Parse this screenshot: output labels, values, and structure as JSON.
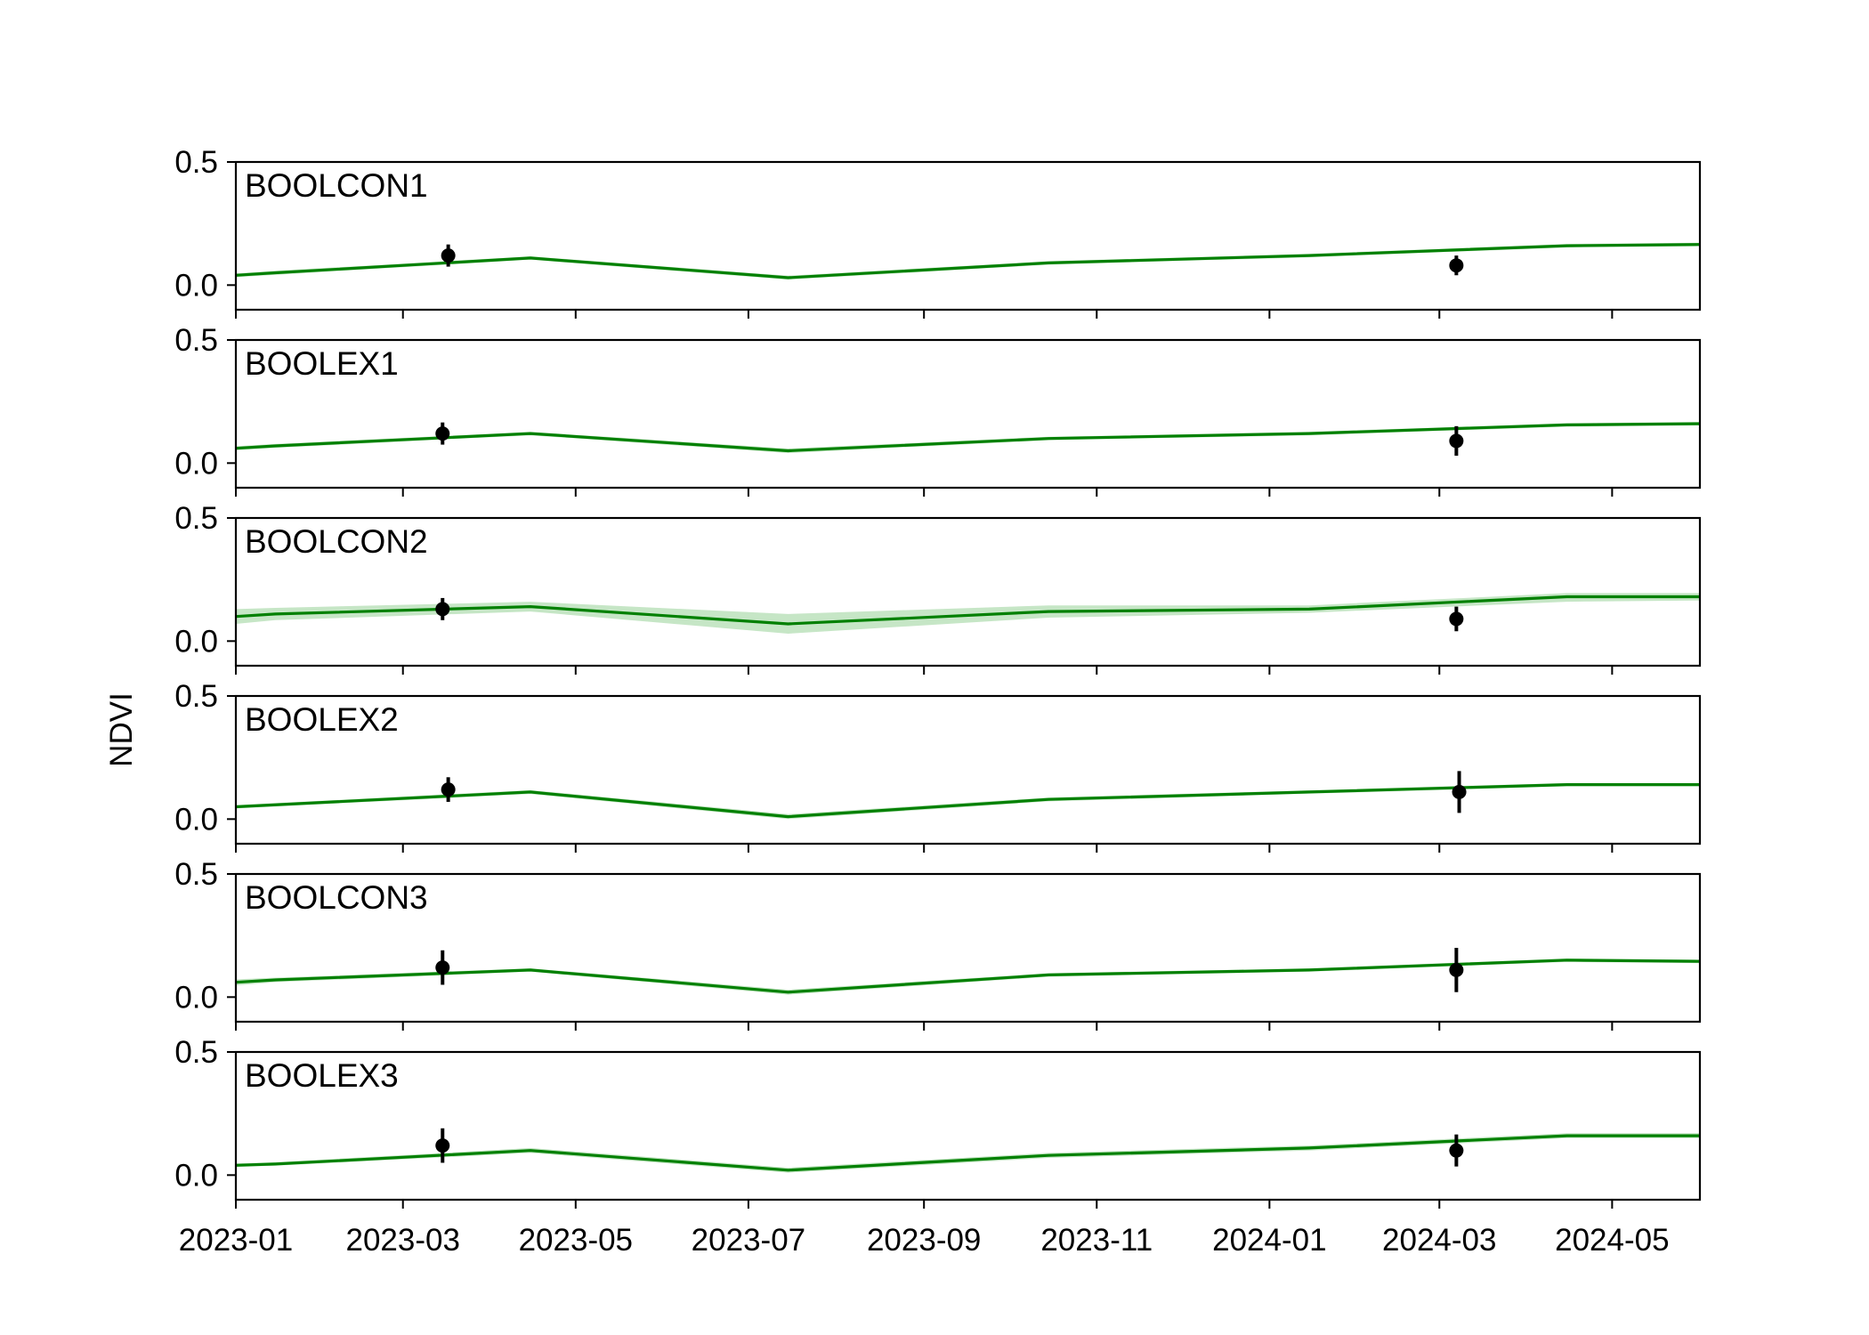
{
  "figure": {
    "ylabel": "NDVI",
    "xaxis": {
      "type": "date",
      "range": [
        "2023-01-01",
        "2024-06-01"
      ],
      "tick_labels": [
        "2023-01",
        "2023-03",
        "2023-05",
        "2023-07",
        "2023-09",
        "2023-11",
        "2024-01",
        "2024-03",
        "2024-05"
      ]
    },
    "yaxis": {
      "range": [
        -0.1,
        0.5
      ],
      "tick_labels": [
        "0.0",
        "0.5"
      ]
    }
  },
  "chart_data": [
    {
      "type": "line",
      "label": "BOOLCON1",
      "colors": {
        "line": "#008000",
        "band": "#a8d8a8",
        "points": "#000000"
      },
      "model": {
        "x": [
          "2023-01-01",
          "2023-01-15",
          "2023-04-15",
          "2023-07-15",
          "2023-10-15",
          "2024-01-15",
          "2024-04-15",
          "2024-06-01"
        ],
        "y": [
          0.04,
          0.05,
          0.11,
          0.03,
          0.09,
          0.12,
          0.16,
          0.165
        ],
        "lower": [
          0.032,
          0.042,
          0.103,
          0.022,
          0.083,
          0.113,
          0.153,
          0.158
        ],
        "upper": [
          0.048,
          0.058,
          0.117,
          0.038,
          0.097,
          0.127,
          0.167,
          0.172
        ]
      },
      "observations": [
        {
          "x": "2023-03-17",
          "y": 0.12,
          "err": 0.045
        },
        {
          "x": "2024-03-07",
          "y": 0.08,
          "err": 0.04
        }
      ]
    },
    {
      "type": "line",
      "label": "BOOLEX1",
      "colors": {
        "line": "#008000",
        "band": "#a8d8a8",
        "points": "#000000"
      },
      "model": {
        "x": [
          "2023-01-01",
          "2023-01-15",
          "2023-04-15",
          "2023-07-15",
          "2023-10-15",
          "2024-01-15",
          "2024-04-15",
          "2024-06-01"
        ],
        "y": [
          0.06,
          0.07,
          0.12,
          0.05,
          0.1,
          0.12,
          0.155,
          0.16
        ],
        "lower": [
          0.052,
          0.062,
          0.113,
          0.041,
          0.093,
          0.113,
          0.148,
          0.153
        ],
        "upper": [
          0.068,
          0.078,
          0.127,
          0.059,
          0.107,
          0.127,
          0.162,
          0.167
        ]
      },
      "observations": [
        {
          "x": "2023-03-15",
          "y": 0.12,
          "err": 0.045
        },
        {
          "x": "2024-03-07",
          "y": 0.09,
          "err": 0.06
        }
      ]
    },
    {
      "type": "line",
      "label": "BOOLCON2",
      "colors": {
        "line": "#008000",
        "band": "#a8d8a8",
        "points": "#000000"
      },
      "model": {
        "x": [
          "2023-01-01",
          "2023-01-15",
          "2023-04-15",
          "2023-07-15",
          "2023-10-15",
          "2024-01-15",
          "2024-04-15",
          "2024-06-01"
        ],
        "y": [
          0.1,
          0.11,
          0.14,
          0.07,
          0.12,
          0.13,
          0.18,
          0.18
        ],
        "lower": [
          0.07,
          0.085,
          0.12,
          0.03,
          0.095,
          0.115,
          0.16,
          0.165
        ],
        "upper": [
          0.13,
          0.135,
          0.16,
          0.11,
          0.145,
          0.145,
          0.195,
          0.195
        ]
      },
      "observations": [
        {
          "x": "2023-03-15",
          "y": 0.13,
          "err": 0.045
        },
        {
          "x": "2024-03-07",
          "y": 0.09,
          "err": 0.05
        }
      ]
    },
    {
      "type": "line",
      "label": "BOOLEX2",
      "colors": {
        "line": "#008000",
        "band": "#a8d8a8",
        "points": "#000000"
      },
      "model": {
        "x": [
          "2023-01-01",
          "2023-04-15",
          "2023-07-15",
          "2023-10-15",
          "2024-01-15",
          "2024-04-15",
          "2024-06-01"
        ],
        "y": [
          0.05,
          0.11,
          0.01,
          0.08,
          0.11,
          0.14,
          0.14
        ],
        "lower": [
          0.043,
          0.102,
          0.0,
          0.072,
          0.103,
          0.133,
          0.133
        ],
        "upper": [
          0.057,
          0.118,
          0.02,
          0.088,
          0.117,
          0.147,
          0.147
        ]
      },
      "observations": [
        {
          "x": "2023-03-17",
          "y": 0.12,
          "err": 0.05
        },
        {
          "x": "2024-03-08",
          "y": 0.11,
          "err": 0.085
        }
      ]
    },
    {
      "type": "line",
      "label": "BOOLCON3",
      "colors": {
        "line": "#008000",
        "band": "#a8d8a8",
        "points": "#000000"
      },
      "model": {
        "x": [
          "2023-01-01",
          "2023-01-15",
          "2023-04-15",
          "2023-07-15",
          "2023-10-15",
          "2024-01-15",
          "2024-04-15",
          "2024-06-01"
        ],
        "y": [
          0.06,
          0.07,
          0.11,
          0.02,
          0.09,
          0.11,
          0.15,
          0.145
        ],
        "lower": [
          0.048,
          0.061,
          0.103,
          0.01,
          0.083,
          0.103,
          0.143,
          0.138
        ],
        "upper": [
          0.072,
          0.079,
          0.117,
          0.03,
          0.097,
          0.117,
          0.157,
          0.152
        ]
      },
      "observations": [
        {
          "x": "2023-03-15",
          "y": 0.12,
          "err": 0.07
        },
        {
          "x": "2024-03-07",
          "y": 0.11,
          "err": 0.09
        }
      ]
    },
    {
      "type": "line",
      "label": "BOOLEX3",
      "colors": {
        "line": "#008000",
        "band": "#a8d8a8",
        "points": "#000000"
      },
      "model": {
        "x": [
          "2023-01-01",
          "2023-01-15",
          "2023-04-15",
          "2023-07-15",
          "2023-10-15",
          "2024-01-15",
          "2024-04-15",
          "2024-06-01"
        ],
        "y": [
          0.04,
          0.045,
          0.1,
          0.02,
          0.08,
          0.11,
          0.16,
          0.16
        ],
        "lower": [
          0.033,
          0.038,
          0.09,
          0.01,
          0.07,
          0.1,
          0.15,
          0.15
        ],
        "upper": [
          0.047,
          0.052,
          0.11,
          0.03,
          0.09,
          0.12,
          0.17,
          0.17
        ]
      },
      "observations": [
        {
          "x": "2023-03-15",
          "y": 0.12,
          "err": 0.07
        },
        {
          "x": "2024-03-07",
          "y": 0.1,
          "err": 0.065
        }
      ]
    }
  ]
}
